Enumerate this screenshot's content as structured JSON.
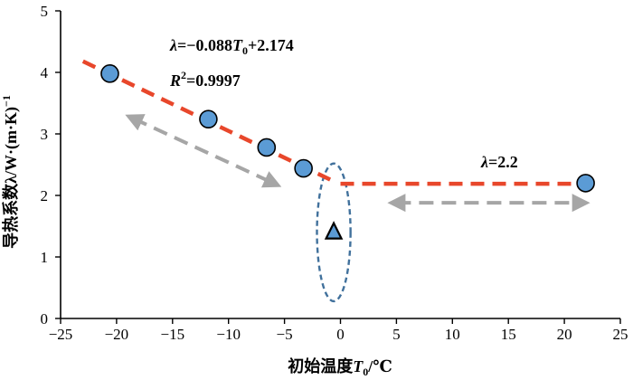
{
  "chart_data": {
    "type": "scatter",
    "title": "",
    "xlabel": "初始温度T0/℃",
    "ylabel": "导热系数λ/W·(m·K)⁻¹",
    "xlim": [
      -25,
      25
    ],
    "ylim": [
      0,
      5
    ],
    "xticks": [
      "−25",
      "−20",
      "−15",
      "−10",
      "−5",
      "0",
      "5",
      "10",
      "15",
      "20",
      "25"
    ],
    "yticks": [
      "0",
      "1",
      "2",
      "3",
      "4",
      "5"
    ],
    "grid": false,
    "series": [
      {
        "marker": "circle",
        "color": "#5b9bd5",
        "points": [
          {
            "x": -20.6,
            "y": 3.98
          },
          {
            "x": -11.8,
            "y": 3.24
          },
          {
            "x": -6.6,
            "y": 2.78
          },
          {
            "x": -3.3,
            "y": 2.44
          },
          {
            "x": 21.9,
            "y": 2.2
          }
        ]
      },
      {
        "marker": "triangle",
        "color": "#5b9bd5",
        "points": [
          {
            "x": -0.6,
            "y": 1.4
          }
        ]
      }
    ],
    "fit_lines": [
      {
        "color": "#e8472b",
        "dash": true,
        "x": [
          -23.0,
          -0.6
        ],
        "y": [
          4.18,
          2.23
        ]
      },
      {
        "color": "#e8472b",
        "dash": true,
        "x": [
          0.0,
          22.0
        ],
        "y": [
          2.19,
          2.19
        ]
      }
    ],
    "arrows": [
      {
        "color": "#a6a6a6",
        "x": [
          -18.5,
          -6.0
        ],
        "y": [
          3.25,
          2.2
        ]
      },
      {
        "color": "#a6a6a6",
        "x": [
          5.0,
          21.5
        ],
        "y": [
          1.88,
          1.88
        ]
      }
    ],
    "highlight_ellipse": {
      "color": "#41719c",
      "cx": -0.6,
      "cy": 1.4,
      "rx": 1.5,
      "ry": 1.12
    },
    "annotations": {
      "eq1_lhs": "λ",
      "eq1_mid": "=−0.088",
      "eq1_var": "T",
      "eq1_sub": "0",
      "eq1_rest": "+2.174",
      "r2_r": "R",
      "r2_sup": "2",
      "r2_rest": "=0.9997",
      "eq2_lhs": "λ",
      "eq2_rest": "=2.2"
    }
  }
}
